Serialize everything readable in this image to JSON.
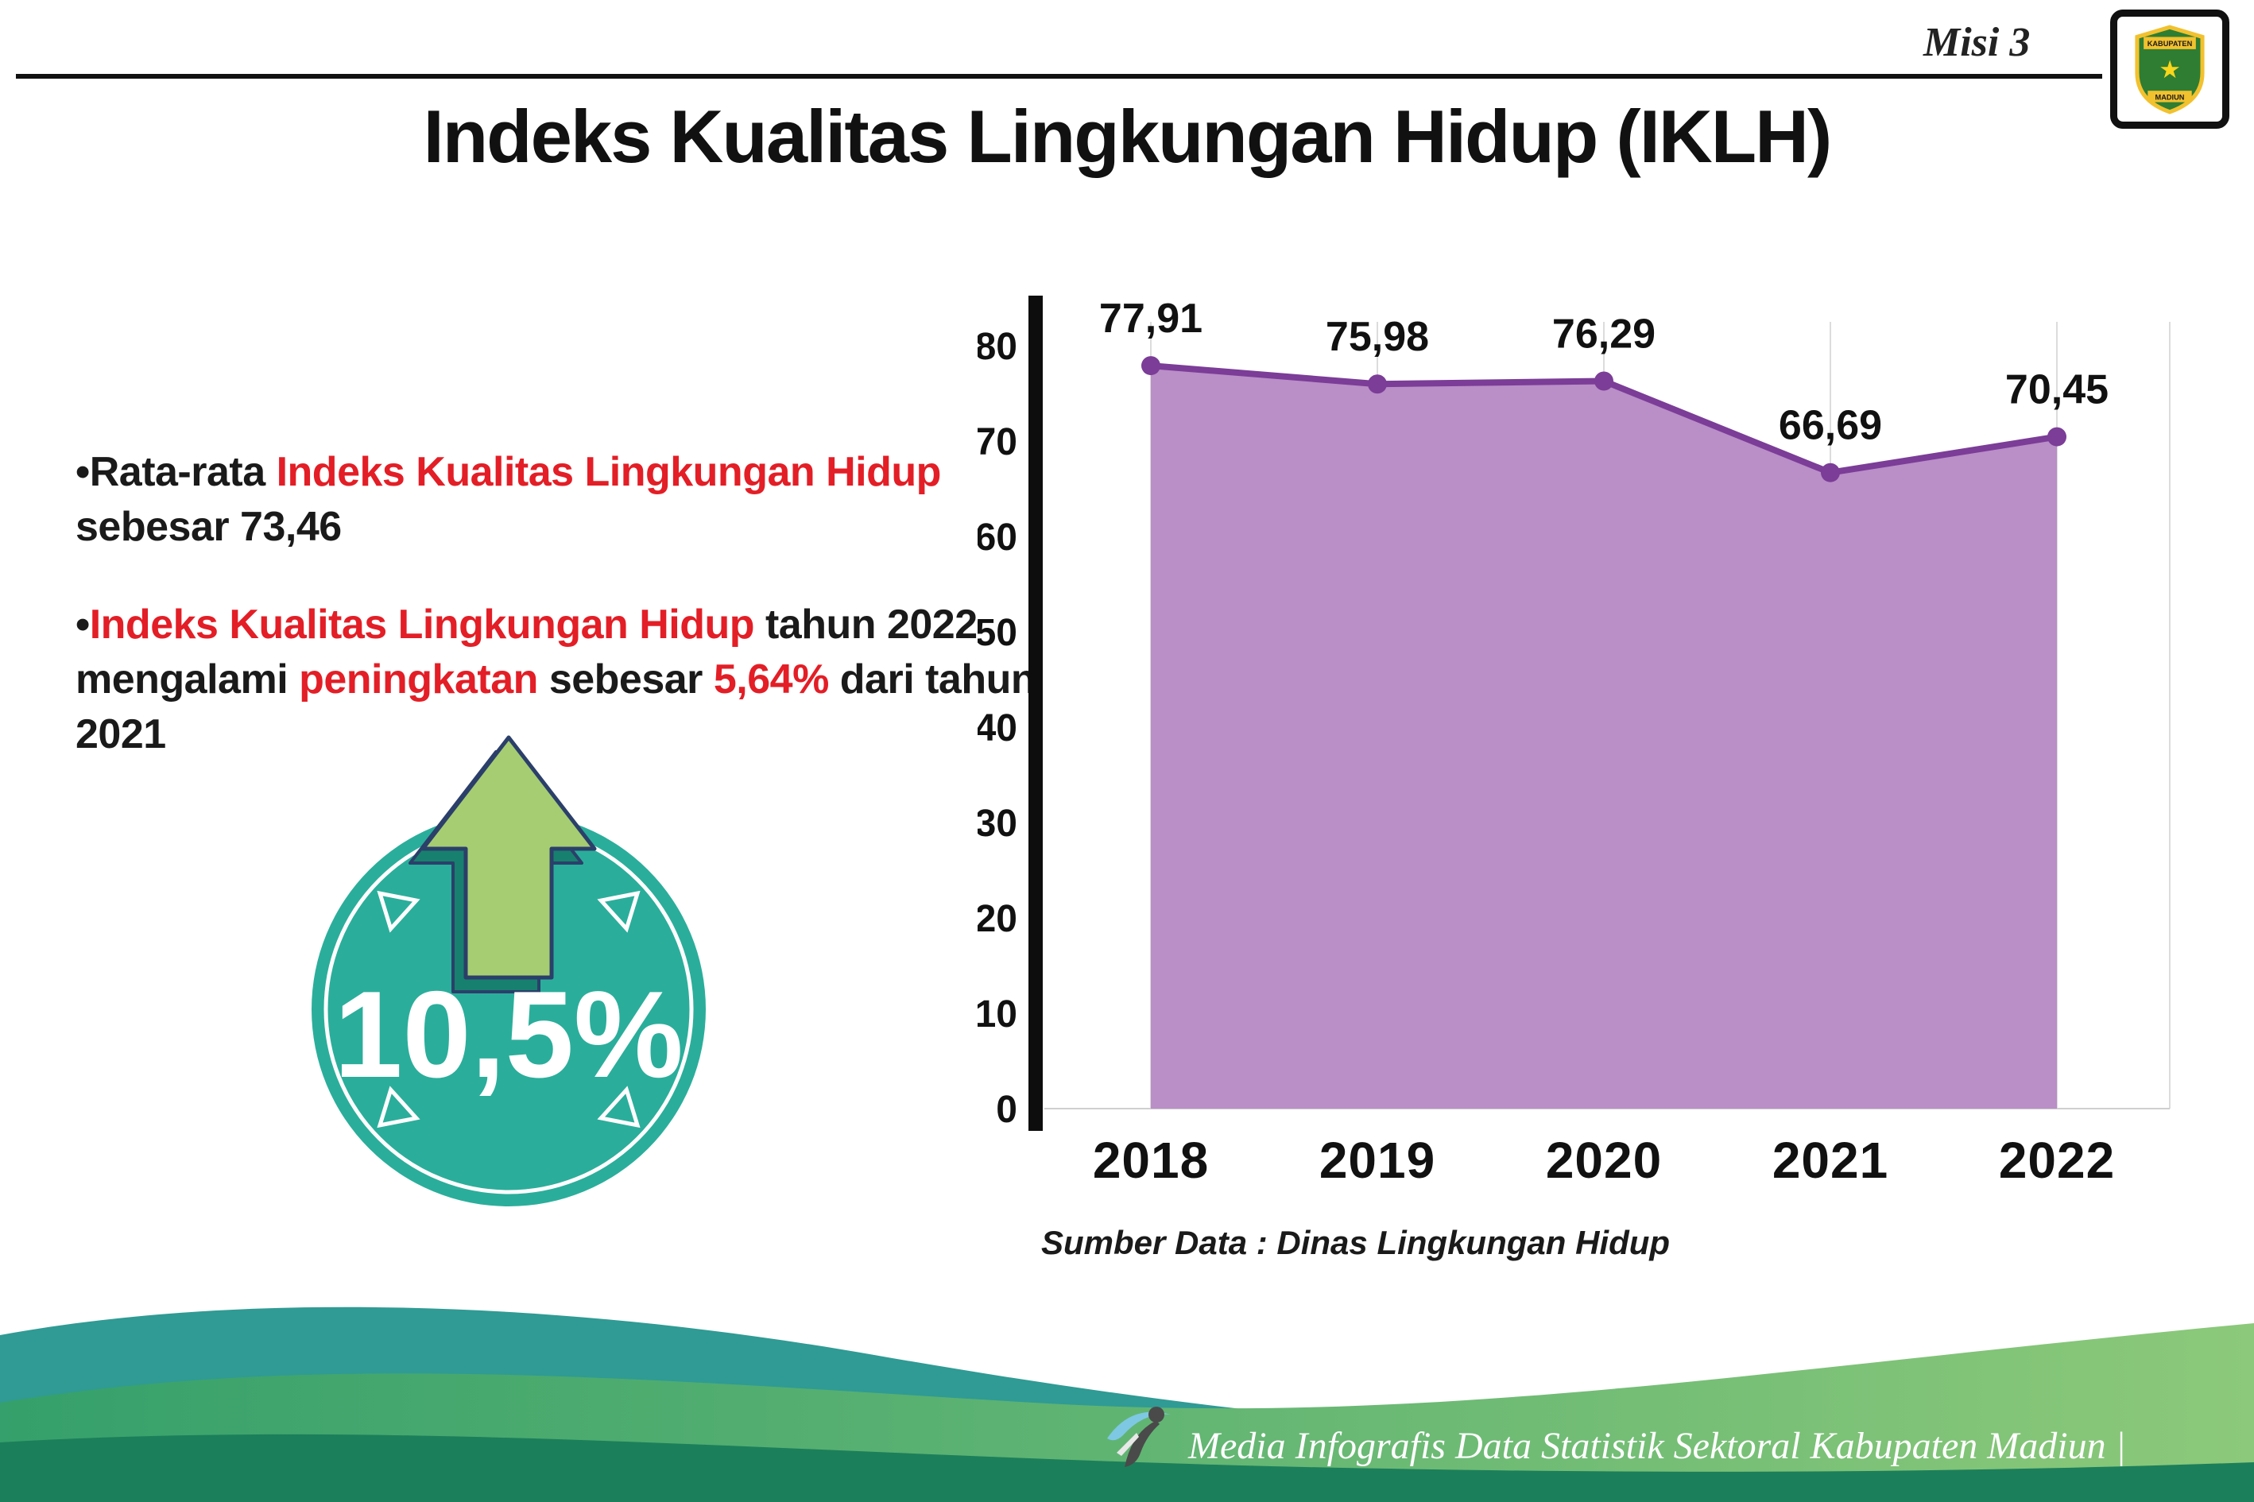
{
  "header": {
    "misi_label": "Misi 3",
    "title": "Indeks Kualitas Lingkungan Hidup (IKLH)"
  },
  "logo": {
    "crest_top": "KABUPATEN",
    "crest_bottom": "MADIUN",
    "star": "★"
  },
  "bullets": {
    "dot": "•",
    "b1_pre": "Rata-rata ",
    "b1_red": "Indeks Kualitas Lingkungan Hidup",
    "b1_post": " sebesar 73,46",
    "b2_red1": "Indeks Kualitas Lingkungan Hidup",
    "b2_mid1": " tahun 2022 mengalami ",
    "b2_red2": "peningkatan",
    "b2_mid2": " sebesar ",
    "b2_red3": "5,64%",
    "b2_post": " dari tahun 2021"
  },
  "badge": {
    "value": "10,5%",
    "circle_color": "#2aae9b",
    "arrow_color": "#a6cd72",
    "arrow_outline": "#2b3f6a"
  },
  "chart_data": {
    "type": "area",
    "categories": [
      "2018",
      "2019",
      "2020",
      "2021",
      "2022"
    ],
    "values": [
      77.91,
      75.98,
      76.29,
      66.69,
      70.45
    ],
    "value_labels": [
      "77,91",
      "75,98",
      "76,29",
      "66,69",
      "70,45"
    ],
    "ylim": [
      0,
      80
    ],
    "yticks": [
      0,
      10,
      20,
      30,
      40,
      50,
      60,
      70,
      80
    ],
    "grid": "vertical",
    "legend": "none",
    "line_color": "#7b3d97",
    "fill_color": "#ba8ec7",
    "source": "Sumber Data : Dinas Lingkungan Hidup"
  },
  "footer": {
    "text": "Media Infografis Data Statistik Sektoral Kabupaten Madiun |"
  }
}
